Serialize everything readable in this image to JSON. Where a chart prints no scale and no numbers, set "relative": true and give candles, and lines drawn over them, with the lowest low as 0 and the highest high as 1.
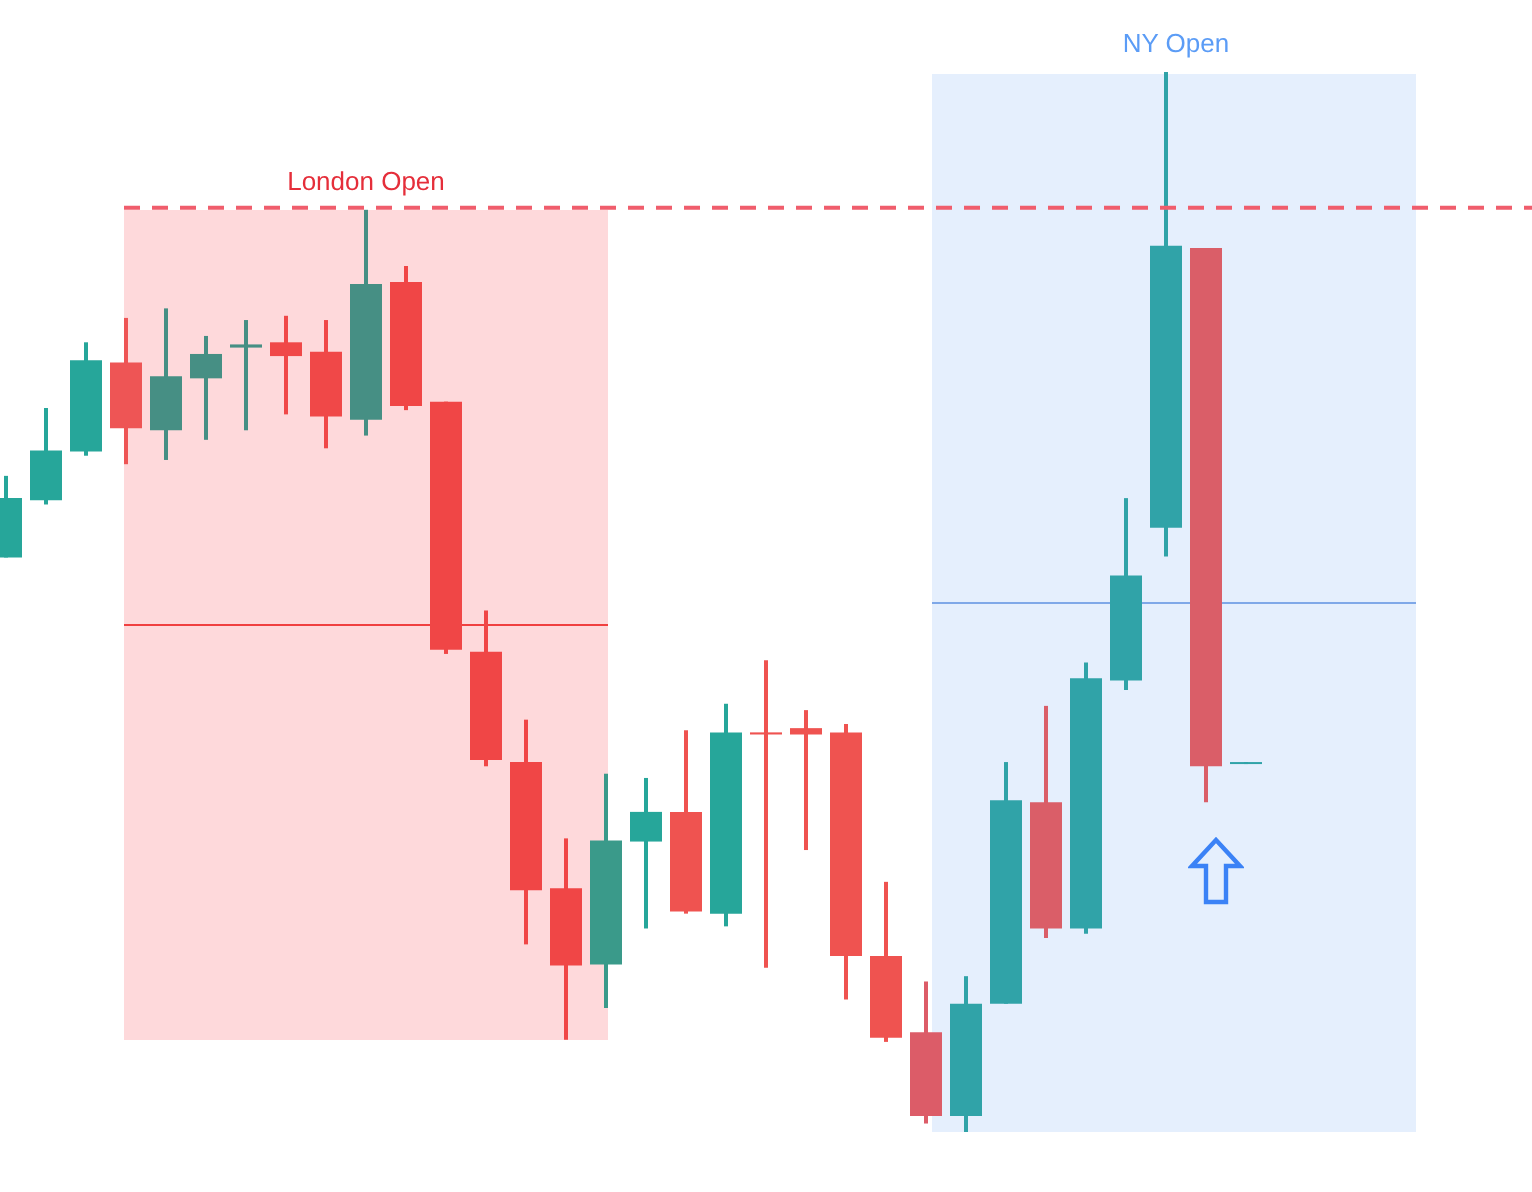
{
  "chart_data": {
    "type": "candlestick",
    "relative": true,
    "legend": false,
    "annotations": [
      "London Open",
      "NY Open"
    ],
    "categories": [
      null,
      null,
      null,
      null,
      null,
      null,
      null,
      null,
      null,
      null,
      null,
      null,
      null,
      null,
      null,
      null,
      null,
      null,
      null,
      null,
      null,
      null,
      null,
      null,
      null,
      null,
      null,
      null,
      null,
      null,
      null,
      null
    ],
    "ohlc": [
      [
        0.542,
        0.619,
        0.542,
        0.598
      ],
      [
        0.596,
        0.683,
        0.592,
        0.643
      ],
      [
        0.642,
        0.745,
        0.638,
        0.728
      ],
      [
        0.726,
        0.768,
        0.63,
        0.664
      ],
      [
        0.662,
        0.777,
        0.634,
        0.713
      ],
      [
        0.711,
        0.751,
        0.653,
        0.734
      ],
      [
        0.74,
        0.766,
        0.662,
        0.743
      ],
      [
        0.745,
        0.77,
        0.677,
        0.732
      ],
      [
        0.736,
        0.766,
        0.645,
        0.675
      ],
      [
        0.672,
        0.87,
        0.657,
        0.8
      ],
      [
        0.802,
        0.817,
        0.681,
        0.685
      ],
      [
        0.689,
        0.689,
        0.451,
        0.455
      ],
      [
        0.453,
        0.492,
        0.345,
        0.351
      ],
      [
        0.349,
        0.389,
        0.177,
        0.228
      ],
      [
        0.23,
        0.277,
        0.087,
        0.157
      ],
      [
        0.158,
        0.338,
        0.117,
        0.275
      ],
      [
        0.274,
        0.334,
        0.192,
        0.302
      ],
      [
        0.302,
        0.379,
        0.206,
        0.208
      ],
      [
        0.206,
        0.404,
        0.194,
        0.377
      ],
      [
        0.377,
        0.445,
        0.155,
        0.375
      ],
      [
        0.381,
        0.398,
        0.266,
        0.375
      ],
      [
        0.377,
        0.385,
        0.125,
        0.166
      ],
      [
        0.166,
        0.236,
        0.085,
        0.089
      ],
      [
        0.094,
        0.142,
        0.008,
        0.015
      ],
      [
        0.015,
        0.147,
        0,
        0.121
      ],
      [
        0.121,
        0.349,
        0.121,
        0.313
      ],
      [
        0.311,
        0.402,
        0.183,
        0.192
      ],
      [
        0.192,
        0.443,
        0.187,
        0.428
      ],
      [
        0.426,
        0.598,
        0.417,
        0.525
      ],
      [
        0.57,
        1,
        0.543,
        0.836
      ],
      [
        0.834,
        0.834,
        0.311,
        0.345
      ],
      [
        0.349,
        0.349,
        0.349,
        0.349
      ]
    ],
    "colors": [
      "#26a69a",
      "#26a69a",
      "#26a69a",
      "#ee5555",
      "#468f84",
      "#468f84",
      "#468f84",
      "#f04848",
      "#f04848",
      "#468f84",
      "#f04646",
      "#f04646",
      "#f04646",
      "#f04646",
      "#f04646",
      "#3a9a8a",
      "#26a69a",
      "#ef5350",
      "#26a69a",
      "#ef5350",
      "#ef5350",
      "#ef5350",
      "#ef5350",
      "#dc5c68",
      "#30a3a8",
      "#30a3a8",
      "#da5e68",
      "#30a3a8",
      "#30a3a8",
      "#30a3a8",
      "#da5e68",
      "#30a3a8"
    ],
    "ref_lines": [
      {
        "axis": "y",
        "value": 0.872,
        "color": "#f05d6c",
        "line_style": "dashed"
      }
    ]
  }
}
